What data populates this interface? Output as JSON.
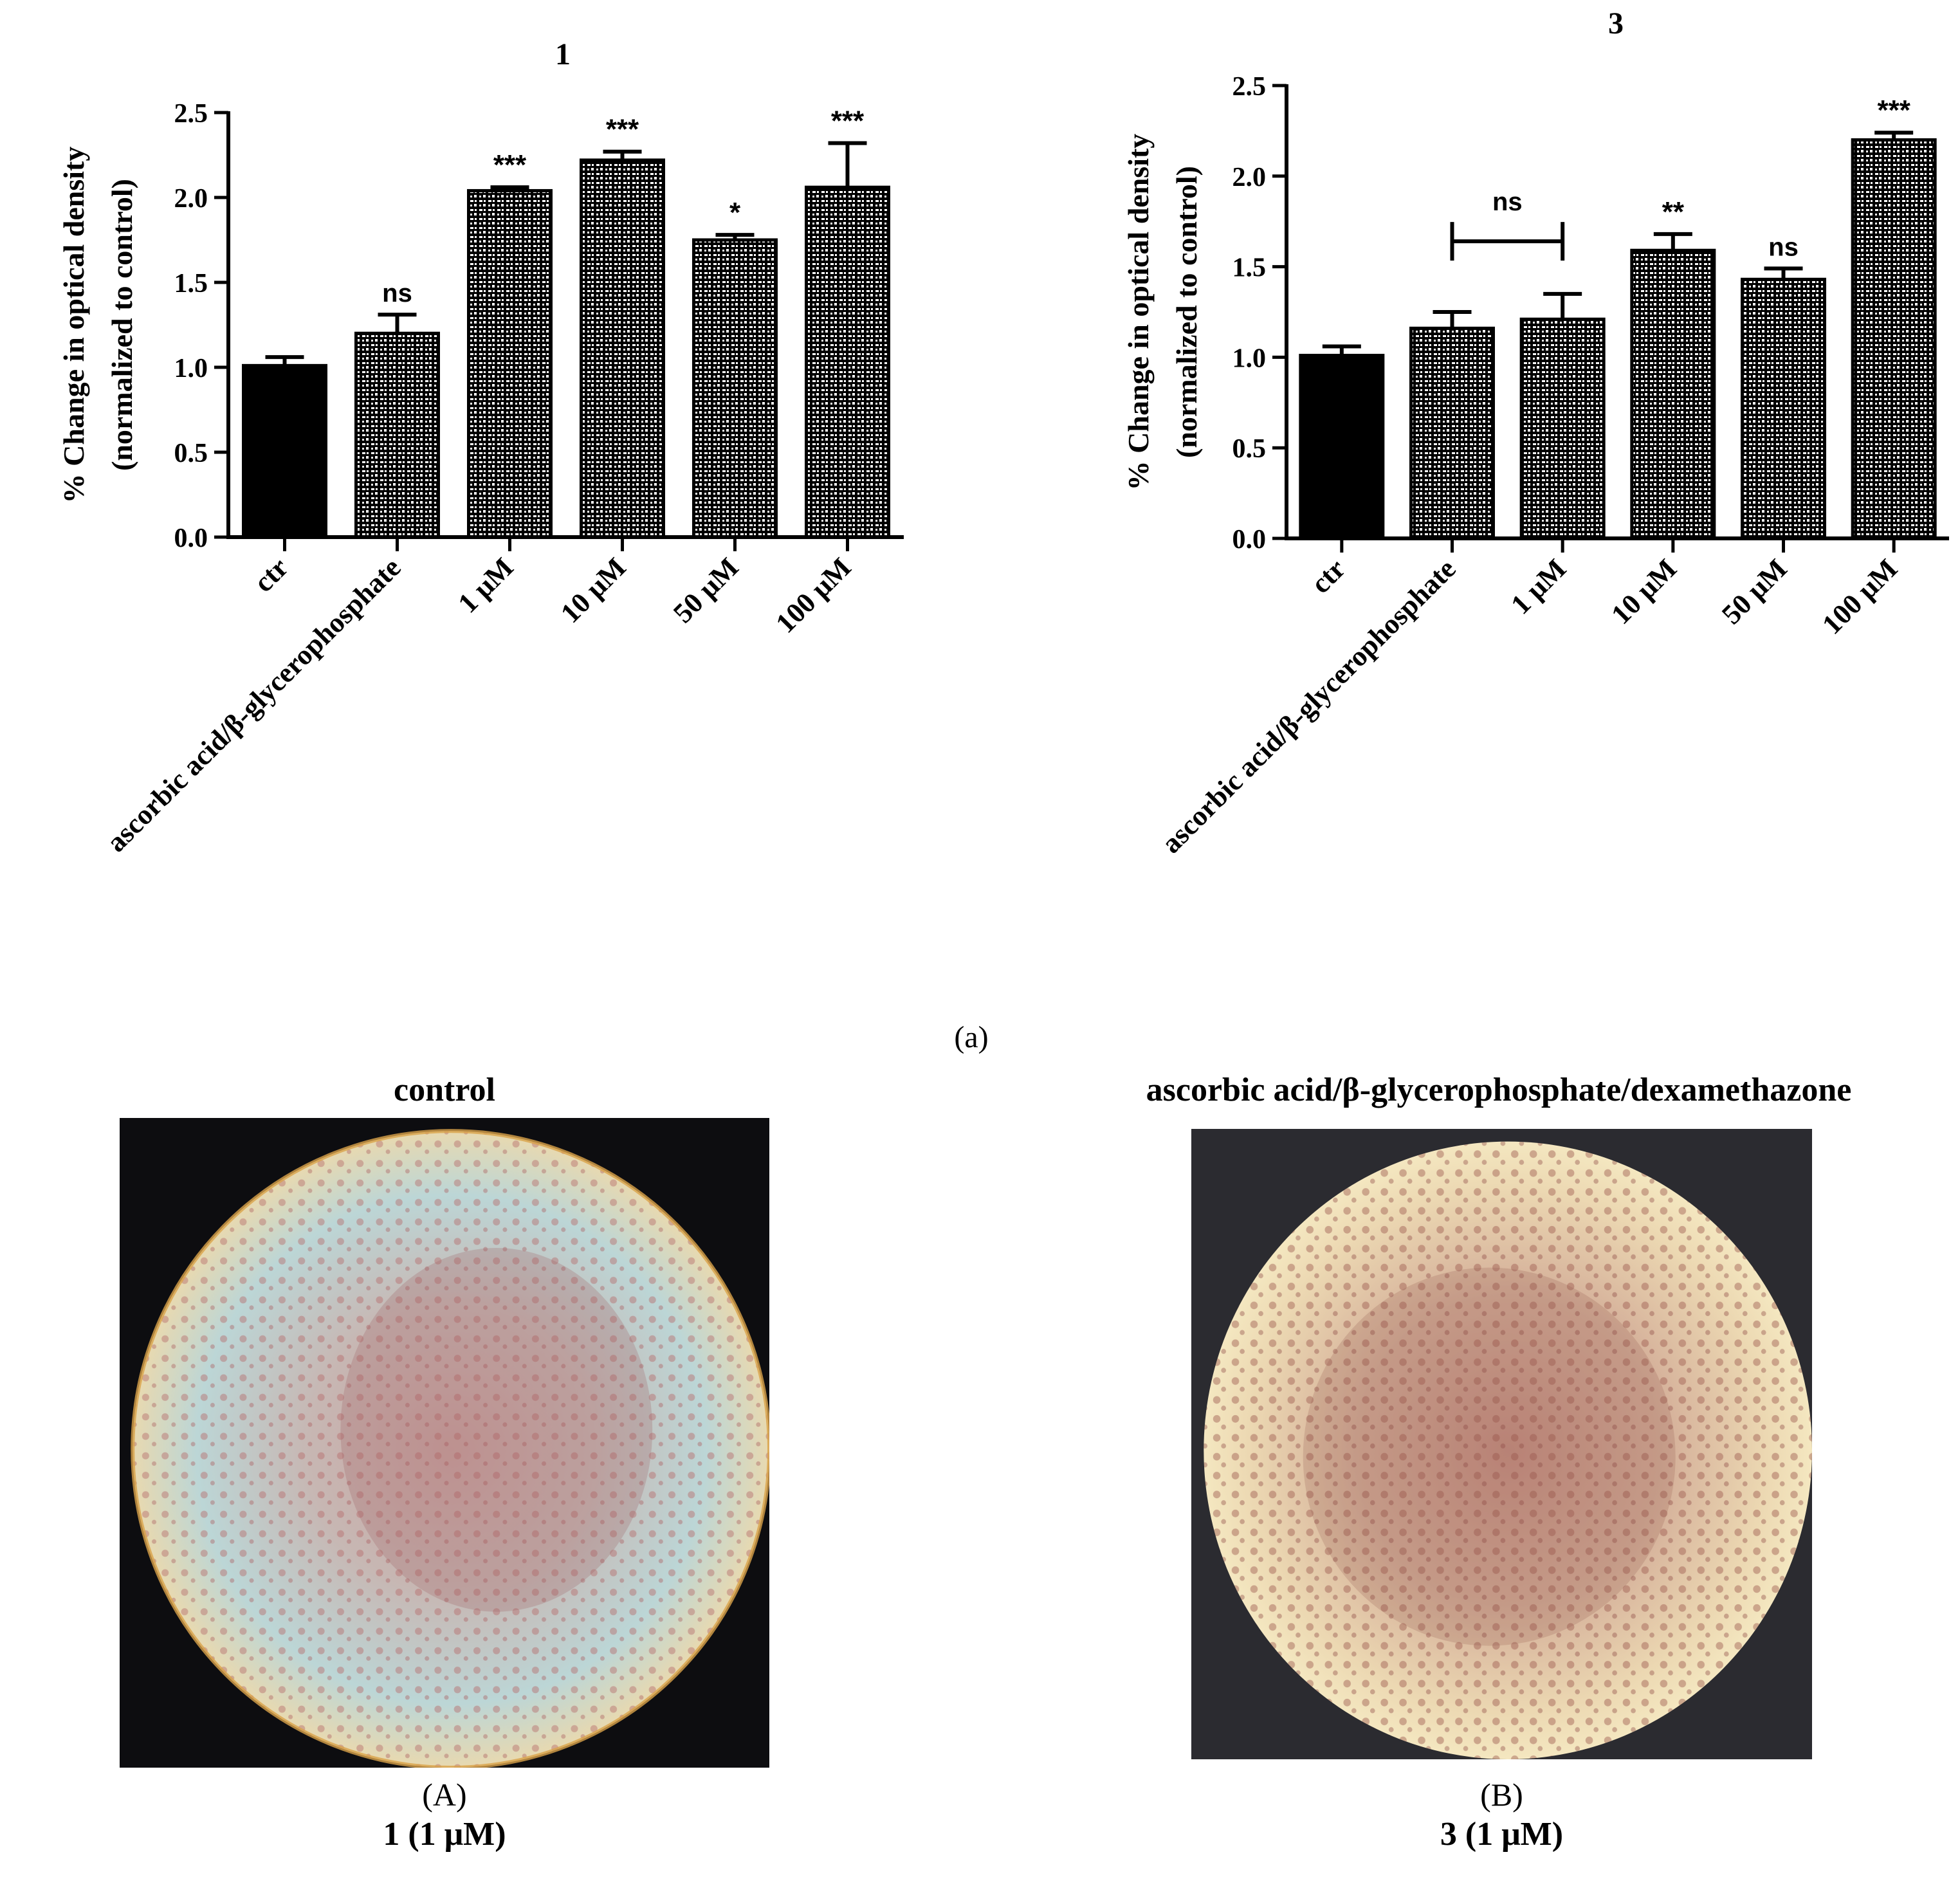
{
  "chart_data": [
    {
      "type": "bar",
      "title": "1",
      "ylabel_line1": "% Change in optical density",
      "ylabel_line2": "(normalized to control)",
      "categories": [
        "ctr",
        "ascorbic acid/β-glycerophosphate",
        "1 μM",
        "10 μM",
        "50 μM",
        "100 μM"
      ],
      "values": [
        1.01,
        1.2,
        2.04,
        2.22,
        1.75,
        2.06
      ],
      "errors": [
        0.05,
        0.11,
        0.02,
        0.05,
        0.03,
        0.26
      ],
      "annotations": [
        "",
        "ns",
        "***",
        "***",
        "*",
        "***"
      ],
      "ylim": [
        0,
        2.5
      ],
      "yticks": [
        "0.0",
        "0.5",
        "1.0",
        "1.5",
        "2.0",
        "2.5"
      ],
      "colors": {
        "ctr": "#000000",
        "treated_fill": "#000000",
        "pattern": "#ffffff"
      }
    },
    {
      "type": "bar",
      "title": "3",
      "ylabel_line1": "% Change in optical density",
      "ylabel_line2": "(normalized to control)",
      "categories": [
        "ctr",
        "ascorbic acid/β-glycerophosphate",
        "1 μM",
        "10 μM",
        "50 μM",
        "100 μM"
      ],
      "values": [
        1.01,
        1.16,
        1.21,
        1.59,
        1.43,
        2.2
      ],
      "errors": [
        0.05,
        0.09,
        0.14,
        0.09,
        0.06,
        0.04
      ],
      "annotations": [
        "",
        "",
        "",
        "**",
        "ns",
        "***"
      ],
      "bracket": {
        "from": 1,
        "to": 2,
        "label": "ns"
      },
      "ylim": [
        0,
        2.5
      ],
      "yticks": [
        "0.0",
        "0.5",
        "1.0",
        "1.5",
        "2.0",
        "2.5"
      ],
      "colors": {
        "ctr": "#000000",
        "treated_fill": "#000000",
        "pattern": "#ffffff"
      }
    }
  ],
  "panel_a_label": "(a)",
  "micrographs": [
    {
      "title": "control",
      "label": "(A)",
      "caption": "1 (1 μM)"
    },
    {
      "title": "ascorbic acid/β-glycerophosphate/dexamethazone",
      "label": "(B)",
      "caption": "3 (1 μM)"
    }
  ]
}
